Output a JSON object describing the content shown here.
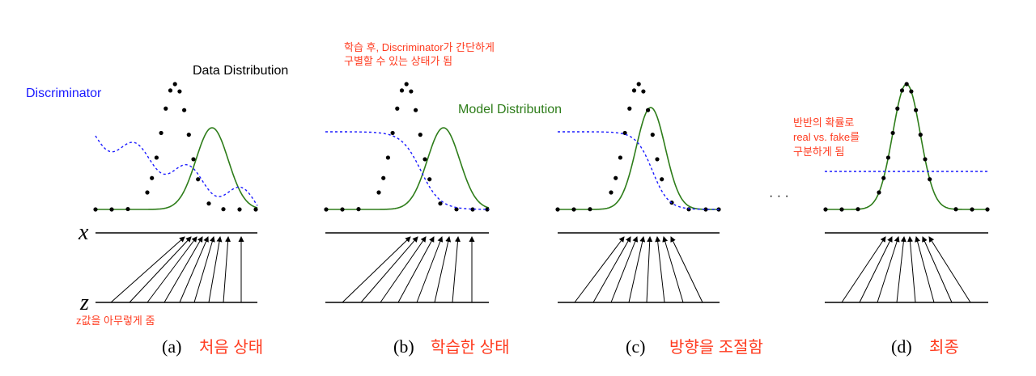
{
  "labels": {
    "discriminator": "Discriminator",
    "data_distribution": "Data Distribution",
    "model_distribution": "Model Distribution",
    "x_axis": "x",
    "z_axis": "z",
    "z_note": "z값을 아무렇게 줌",
    "ellipsis": "· · ·"
  },
  "annotations": {
    "after_training": [
      "학습 후, Discriminator가 간단하게",
      "구별할 수 있는 상태가 됨"
    ],
    "half_probability": [
      "반반의 확률로",
      "real vs. fake를",
      "구분하게 됨"
    ]
  },
  "panels": [
    {
      "letter": "(a)",
      "title": "처음 상태"
    },
    {
      "letter": "(b)",
      "title": "학습한 상태"
    },
    {
      "letter": "(c)",
      "title": "방향을 조절함"
    },
    {
      "letter": "(d)",
      "title": "최종"
    }
  ],
  "colors": {
    "data": "#000000",
    "model": "#2e7d1a",
    "discriminator": "#1a1aff",
    "annotation": "#ff3b1f",
    "axis": "#000000"
  }
}
